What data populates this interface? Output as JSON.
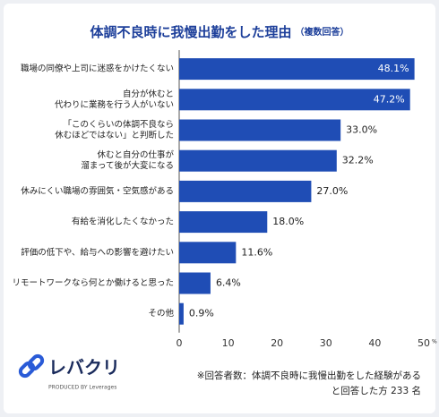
{
  "chart_data": {
    "type": "bar",
    "orientation": "horizontal",
    "title": "体調不良時に我慢出勤をした理由",
    "subtitle": "（複数回答）",
    "categories": [
      [
        "職場の同僚や上司に迷惑をかけたくない"
      ],
      [
        "自分が休むと",
        "代わりに業務を行う人がいない"
      ],
      [
        "「このくらいの体調不良なら",
        "休むほどではない」と判断した"
      ],
      [
        "休むと自分の仕事が",
        "溜まって後が大変になる"
      ],
      [
        "休みにくい職場の雰囲気・空気感がある"
      ],
      [
        "有給を消化したくなかった"
      ],
      [
        "評価の低下や、給与への影響を避けたい"
      ],
      [
        "リモートワークなら何とか働けると思った"
      ],
      [
        "その他"
      ]
    ],
    "values": [
      48.1,
      47.2,
      33.0,
      32.2,
      27.0,
      18.0,
      11.6,
      6.4,
      0.9
    ],
    "value_labels": [
      "48.1%",
      "47.2%",
      "33.0%",
      "32.2%",
      "27.0%",
      "18.0%",
      "11.6%",
      "6.4%",
      "0.9%"
    ],
    "color": "#1f4db5",
    "xlim": [
      0,
      50
    ],
    "xticks": [
      0,
      10,
      20,
      30,
      40,
      50
    ],
    "x_unit": "%",
    "grid": false
  },
  "logo": {
    "name": "レバクリ",
    "tagline": "PRODUCED BY Leverages"
  },
  "footnote": [
    "※回答者数：体調不良時に我慢出勤をした経験がある",
    "と回答した方 233 名"
  ]
}
